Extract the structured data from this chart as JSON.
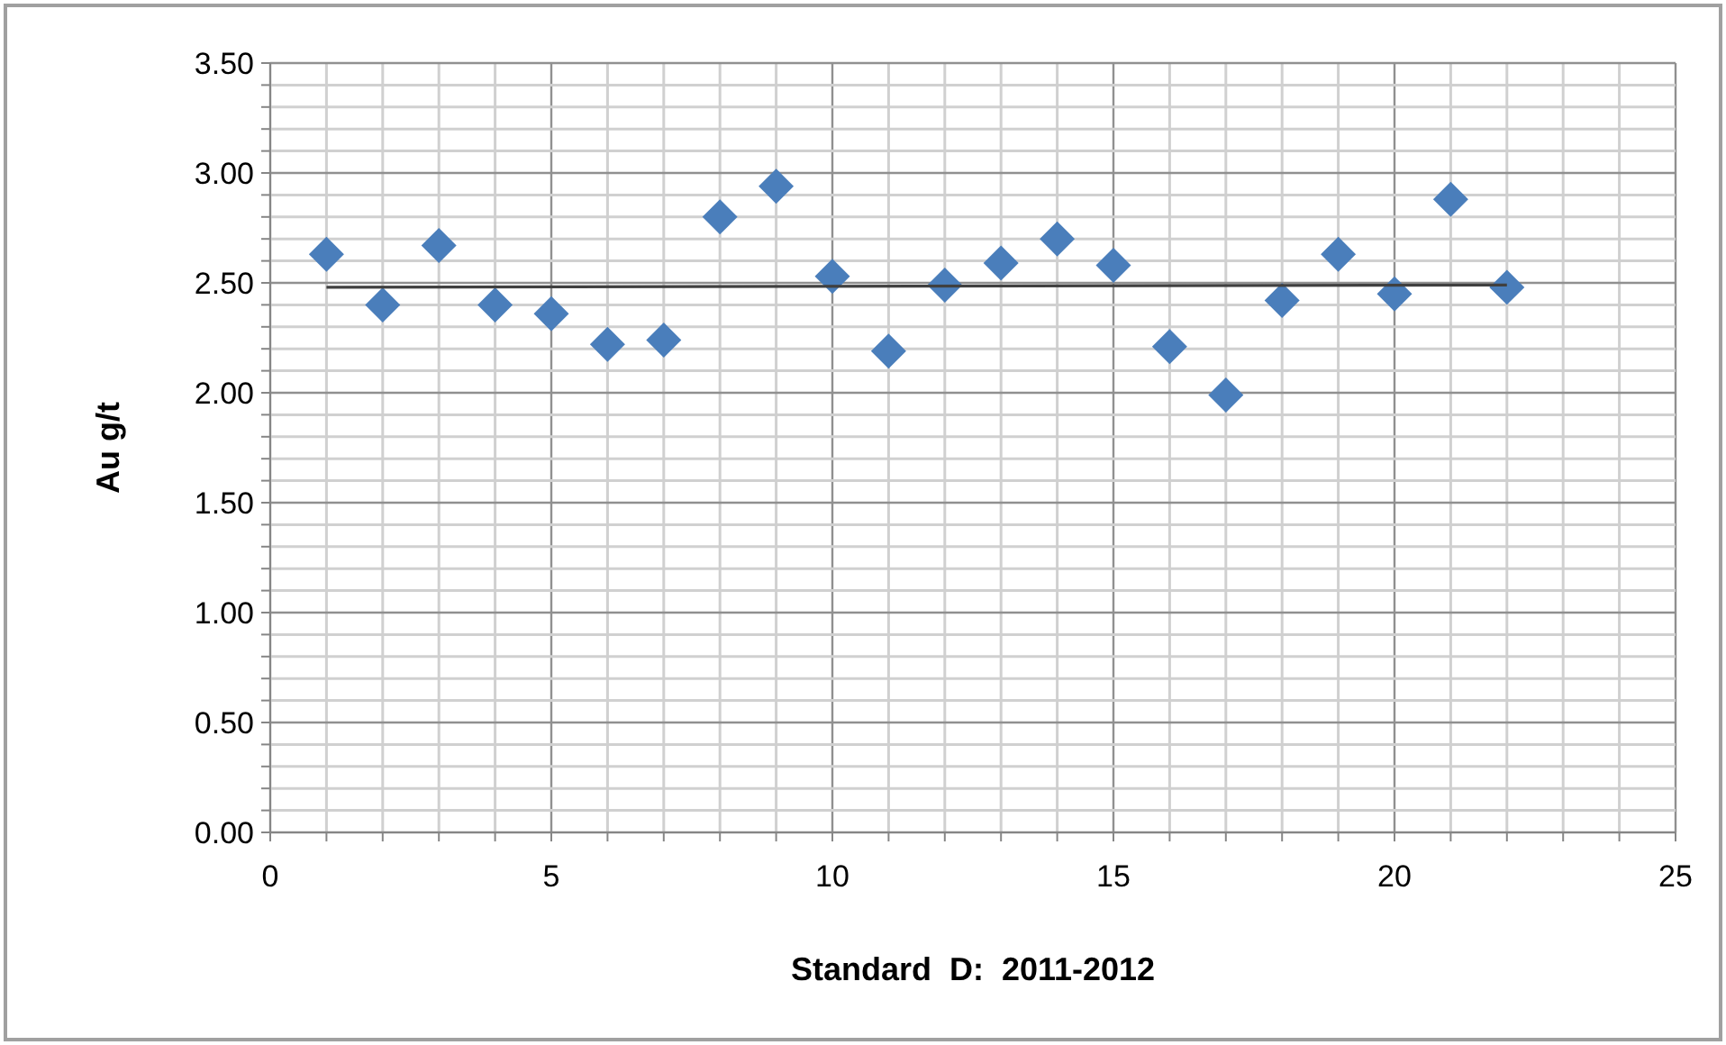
{
  "chart_data": {
    "type": "scatter",
    "xlabel": "Standard  D:  2011-2012",
    "ylabel": "Au g/t",
    "marker": "diamond",
    "grid": true,
    "xlim": [
      0,
      25
    ],
    "ylim": [
      0,
      3.5
    ],
    "xticks": [
      0,
      {
        "value": 1,
        "label": null
      },
      {
        "value": 2,
        "label": null
      },
      {
        "value": 3,
        "label": null
      },
      {
        "value": 4,
        "label": null
      },
      5,
      {
        "value": 6,
        "label": null
      },
      {
        "value": 7,
        "label": null
      },
      {
        "value": 8,
        "label": null
      },
      {
        "value": 9,
        "label": null
      },
      10,
      {
        "value": 11,
        "label": null
      },
      {
        "value": 12,
        "label": null
      },
      {
        "value": 13,
        "label": null
      },
      {
        "value": 14,
        "label": null
      },
      15,
      {
        "value": 16,
        "label": null
      },
      {
        "value": 17,
        "label": null
      },
      {
        "value": 18,
        "label": null
      },
      {
        "value": 19,
        "label": null
      },
      20,
      {
        "value": 21,
        "label": null
      },
      {
        "value": 22,
        "label": null
      },
      {
        "value": 23,
        "label": null
      },
      {
        "value": 24,
        "label": null
      },
      25
    ],
    "yticks": [
      {
        "value": 0,
        "label": "0.00"
      },
      {
        "value": 0.1,
        "label": null
      },
      {
        "value": 0.2,
        "label": null
      },
      {
        "value": 0.3,
        "label": null
      },
      {
        "value": 0.4,
        "label": null
      },
      {
        "value": 0.5,
        "label": "0.50"
      },
      {
        "value": 0.6,
        "label": null
      },
      {
        "value": 0.7,
        "label": null
      },
      {
        "value": 0.8,
        "label": null
      },
      {
        "value": 0.9,
        "label": null
      },
      {
        "value": 1,
        "label": "1.00"
      },
      {
        "value": 1.1,
        "label": null
      },
      {
        "value": 1.2,
        "label": null
      },
      {
        "value": 1.3,
        "label": null
      },
      {
        "value": 1.4,
        "label": null
      },
      {
        "value": 1.5,
        "label": "1.50"
      },
      {
        "value": 1.6,
        "label": null
      },
      {
        "value": 1.7,
        "label": null
      },
      {
        "value": 1.8,
        "label": null
      },
      {
        "value": 1.9,
        "label": null
      },
      {
        "value": 2,
        "label": "2.00"
      },
      {
        "value": 2.1,
        "label": null
      },
      {
        "value": 2.2,
        "label": null
      },
      {
        "value": 2.3,
        "label": null
      },
      {
        "value": 2.4,
        "label": null
      },
      {
        "value": 2.5,
        "label": "2.50"
      },
      {
        "value": 2.6,
        "label": null
      },
      {
        "value": 2.7,
        "label": null
      },
      {
        "value": 2.8,
        "label": null
      },
      {
        "value": 2.9,
        "label": null
      },
      {
        "value": 3,
        "label": "3.00"
      },
      {
        "value": 3.1,
        "label": null
      },
      {
        "value": 3.2,
        "label": null
      },
      {
        "value": 3.3,
        "label": null
      },
      {
        "value": 3.4,
        "label": null
      },
      {
        "value": 3.5,
        "label": "3.50"
      }
    ],
    "series": [
      {
        "color": "#4a7ebb",
        "x": [
          1,
          2,
          3,
          4,
          5,
          6,
          7,
          8,
          9,
          10,
          11,
          12,
          13,
          14,
          15,
          16,
          17,
          18,
          19,
          20,
          21,
          22
        ],
        "values": [
          2.63,
          2.4,
          2.67,
          2.4,
          2.36,
          2.22,
          2.24,
          2.8,
          2.94,
          2.53,
          2.19,
          2.49,
          2.59,
          2.7,
          2.58,
          2.21,
          1.99,
          2.42,
          2.63,
          2.45,
          2.88,
          2.48
        ]
      },
      {
        "type": "line",
        "color": "#404040",
        "marker": "none",
        "x": [
          1,
          22
        ],
        "values": [
          2.48,
          2.49
        ]
      }
    ]
  }
}
